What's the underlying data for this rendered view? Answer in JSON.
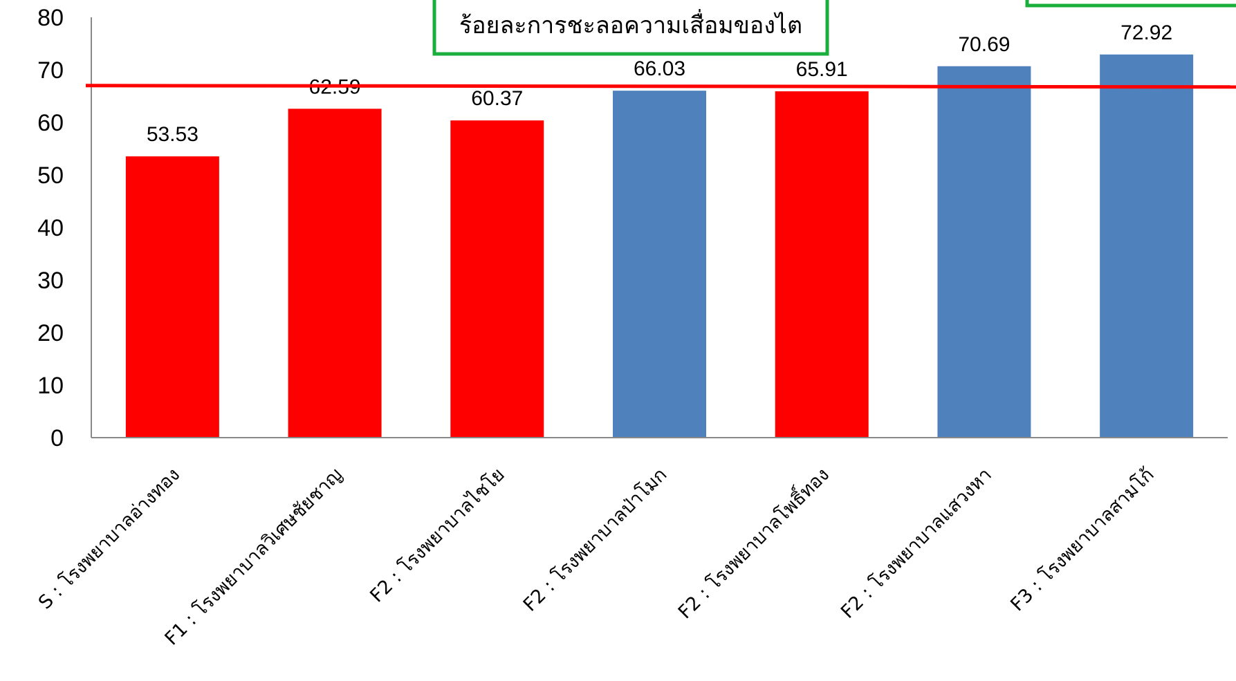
{
  "chart_data": {
    "type": "bar",
    "title": "ร้อยละการชะลอความเสื่อมของไต",
    "xlabel": "",
    "ylabel": "",
    "ylim": [
      0,
      80
    ],
    "yticks": [
      0,
      10,
      20,
      30,
      40,
      50,
      60,
      70,
      80
    ],
    "categories": [
      "S : โรงพยาบาลอ่างทอง",
      "F1 : โรงพยาบาลวิเศษชัยชาญ",
      "F2 : โรงพยาบาลไชโย",
      "F2 : โรงพยาบาลป่าโมก",
      "F2 : โรงพยาบาลโพธิ์ทอง",
      "F2 : โรงพยาบาลแสวงหา",
      "F3 : โรงพยาบาลสามโก้"
    ],
    "values": [
      53.53,
      62.59,
      60.37,
      66.03,
      65.91,
      70.69,
      72.92
    ],
    "value_labels": [
      "53.53",
      "62.59",
      "60.37",
      "66.03",
      "65.91",
      "70.69",
      "72.92"
    ],
    "bar_colors": [
      "#ff0000",
      "#ff0000",
      "#ff0000",
      "#4f81bd",
      "#ff0000",
      "#4f81bd",
      "#4f81bd"
    ],
    "target_line": {
      "value": 67,
      "color": "#ff0000"
    },
    "title_box_color": "#1aaf3c",
    "grid": false,
    "legend": "none"
  }
}
